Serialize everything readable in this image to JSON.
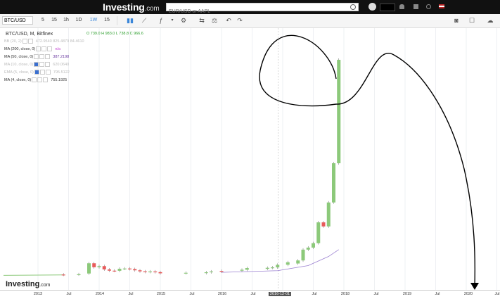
{
  "header": {
    "logo_text": "Investing",
    "logo_suffix": ".com",
    "search_placeholder": "EUR/USD or AAPL",
    "flag_icon": "us-flag-icon"
  },
  "toolbar": {
    "symbol": "BTC/USD",
    "timeframes": [
      "5",
      "15",
      "1h",
      "1D",
      "1W",
      "15"
    ],
    "active_timeframe": "1W",
    "icons": [
      "candles-icon",
      "line-chart-icon",
      "indicators-icon",
      "dropdown-icon",
      "settings-icon",
      "compare-icon",
      "balance-icon",
      "undo-icon",
      "redo-icon",
      "camera-icon",
      "layout-icon",
      "cloud-icon"
    ]
  },
  "chart_header": {
    "title": "BTC/USD, M, Bitfinex",
    "ohlc": "O 739.0  H 983.0  L 738.8  C 966.6",
    "indicators": [
      {
        "label": "BB (20, 2)",
        "value": "472.9540  825.4879  84.4610",
        "faint": true
      },
      {
        "label": "MA (200, close, 0)",
        "value": "n/a",
        "faint": false
      },
      {
        "label": "MA (50, close, 0)",
        "value": "387.2198",
        "faint": false
      },
      {
        "label": "MA (10, close, 0)",
        "value": "620.0640",
        "faint": true
      },
      {
        "label": "EMA (5, close, 0)",
        "value": "795.5122",
        "faint": true
      },
      {
        "label": "MA (4, close, 0)",
        "value": "755.1925",
        "faint": false
      }
    ]
  },
  "watermark": {
    "text": "Investing",
    "suffix": ".com"
  },
  "xaxis": {
    "labels": [
      "2013",
      "Jul",
      "2014",
      "Jul",
      "2015",
      "Jul",
      "2016",
      "Jul",
      "2016-12-01",
      "Jul",
      "2018",
      "Jul",
      "2019",
      "Jul",
      "2020",
      "Jul"
    ],
    "selected": "2016-12-01"
  },
  "chart_data": {
    "type": "candlestick",
    "title": "BTC/USD, M, Bitfinex",
    "x_range": [
      "2013-01",
      "2020-12"
    ],
    "y_range": [
      0,
      20000
    ],
    "candles": [
      {
        "t": "2013-06",
        "o": 110,
        "c": 95
      },
      {
        "t": "2013-09",
        "o": 120,
        "c": 135
      },
      {
        "t": "2013-11",
        "o": 200,
        "c": 1100
      },
      {
        "t": "2013-12",
        "o": 1100,
        "c": 750
      },
      {
        "t": "2014-01",
        "o": 750,
        "c": 850
      },
      {
        "t": "2014-02",
        "o": 850,
        "c": 560
      },
      {
        "t": "2014-03",
        "o": 560,
        "c": 450
      },
      {
        "t": "2014-04",
        "o": 450,
        "c": 440
      },
      {
        "t": "2014-05",
        "o": 440,
        "c": 620
      },
      {
        "t": "2014-06",
        "o": 620,
        "c": 640
      },
      {
        "t": "2014-07",
        "o": 640,
        "c": 590
      },
      {
        "t": "2014-08",
        "o": 590,
        "c": 480
      },
      {
        "t": "2014-09",
        "o": 480,
        "c": 390
      },
      {
        "t": "2014-10",
        "o": 390,
        "c": 340
      },
      {
        "t": "2014-11",
        "o": 340,
        "c": 380
      },
      {
        "t": "2014-12",
        "o": 380,
        "c": 320
      },
      {
        "t": "2015-01",
        "o": 320,
        "c": 220
      },
      {
        "t": "2015-06",
        "o": 230,
        "c": 265
      },
      {
        "t": "2015-10",
        "o": 240,
        "c": 310
      },
      {
        "t": "2015-11",
        "o": 310,
        "c": 380
      },
      {
        "t": "2016-01",
        "o": 430,
        "c": 370
      },
      {
        "t": "2016-05",
        "o": 450,
        "c": 530
      },
      {
        "t": "2016-06",
        "o": 530,
        "c": 680
      },
      {
        "t": "2016-10",
        "o": 610,
        "c": 700
      },
      {
        "t": "2016-11",
        "o": 700,
        "c": 740
      },
      {
        "t": "2016-12",
        "o": 739,
        "c": 966
      },
      {
        "t": "2017-02",
        "o": 970,
        "c": 1190
      },
      {
        "t": "2017-04",
        "o": 1080,
        "c": 1350
      },
      {
        "t": "2017-05",
        "o": 1350,
        "c": 2300
      },
      {
        "t": "2017-06",
        "o": 2300,
        "c": 2480
      },
      {
        "t": "2017-07",
        "o": 2480,
        "c": 2870
      },
      {
        "t": "2017-08",
        "o": 2870,
        "c": 4700
      },
      {
        "t": "2017-09",
        "o": 4700,
        "c": 4340
      },
      {
        "t": "2017-10",
        "o": 4340,
        "c": 6450
      },
      {
        "t": "2017-11",
        "o": 6450,
        "c": 9900
      },
      {
        "t": "2017-12",
        "o": 9900,
        "c": 19000
      }
    ],
    "ma_line": [
      {
        "t": "2016-01",
        "y": 300
      },
      {
        "t": "2016-12",
        "y": 450
      },
      {
        "t": "2017-06",
        "y": 900
      },
      {
        "t": "2017-10",
        "y": 1700
      },
      {
        "t": "2017-12",
        "y": 2300
      }
    ],
    "colors": {
      "up": "#8cc97a",
      "down": "#e85a5a",
      "ma": "#9a7fd0",
      "wick": "#666"
    }
  }
}
